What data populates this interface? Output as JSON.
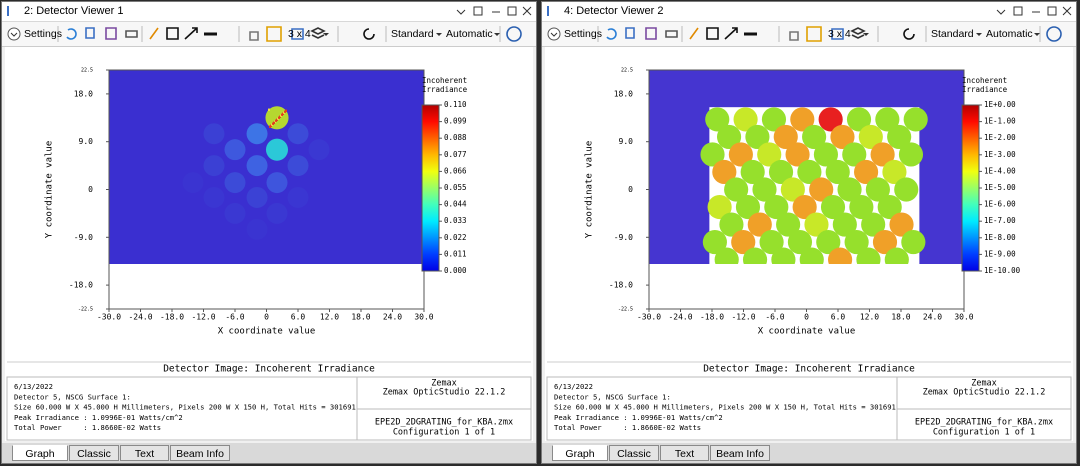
{
  "windows": [
    {
      "title": "2: Detector Viewer 1",
      "toolbar": {
        "settings": "Settings",
        "layout": "3 x 4",
        "style": "Standard",
        "scale": "Automatic"
      },
      "plot": {
        "x_label": "X coordinate value",
        "y_label": "Y coordinate value",
        "x_ticks": [
          "-30.0",
          "-24.0",
          "-18.0",
          "-12.0",
          "-6.0",
          "0",
          "6.0",
          "12.0",
          "18.0",
          "24.0",
          "30.0"
        ],
        "y_ticks": [
          "22.5",
          "18.0",
          "9.0",
          "0",
          "-9.0",
          "-18.0",
          "-22.5"
        ],
        "colorbar": {
          "title": [
            "Incoherent",
            "Irradiance"
          ],
          "labels": [
            "0.110",
            "0.099",
            "0.088",
            "0.077",
            "0.066",
            "0.055",
            "0.044",
            "0.033",
            "0.022",
            "0.011",
            "0.000"
          ]
        },
        "title": "Detector Image: Incoherent Irradiance"
      },
      "info": {
        "lines": [
          "6/13/2022",
          "Detector 5, NSCG Surface 1:",
          "Size 60.000 W X 45.000 H Millimeters, Pixels 200 W X 150 H, Total Hits = 301691",
          "Peak Irradiance : 1.0996E-01 Watts/cm^2",
          "Total Power     : 1.8660E-02 Watts"
        ],
        "vendor": "Zemax",
        "product": "Zemax OpticStudio 22.1.2",
        "file": "EPE2D_2DGRATING_for_KBA.zmx",
        "configuration": "Configuration 1 of 1"
      },
      "tabs": [
        "Graph",
        "Classic",
        "Text",
        "Beam Info"
      ]
    },
    {
      "title": "4: Detector Viewer 2",
      "toolbar": {
        "settings": "Settings",
        "layout": "3 x 4",
        "style": "Standard",
        "scale": "Automatic"
      },
      "plot": {
        "x_label": "X coordinate value",
        "y_label": "Y coordinate value",
        "x_ticks": [
          "-30.0",
          "-24.0",
          "-18.0",
          "-12.0",
          "-6.0",
          "0",
          "6.0",
          "12.0",
          "18.0",
          "24.0",
          "30.0"
        ],
        "y_ticks": [
          "22.5",
          "18.0",
          "9.0",
          "0",
          "-9.0",
          "-18.0",
          "-22.5"
        ],
        "colorbar": {
          "title": [
            "Incoherent",
            "Irradiance"
          ],
          "labels": [
            "1E+0.00",
            "1E-1.00",
            "1E-2.00",
            "1E-3.00",
            "1E-4.00",
            "1E-5.00",
            "1E-6.00",
            "1E-7.00",
            "1E-8.00",
            "1E-9.00",
            "1E-10.00"
          ]
        },
        "title": "Detector Image: Incoherent Irradiance"
      },
      "info": {
        "lines": [
          "6/13/2022",
          "Detector 5, NSCG Surface 1:",
          "Size 60.000 W X 45.000 H Millimeters, Pixels 200 W X 150 H, Total Hits = 301691",
          "Peak Irradiance : 1.0996E-01 Watts/cm^2",
          "Total Power     : 1.8660E-02 Watts"
        ],
        "vendor": "Zemax",
        "product": "Zemax OpticStudio 22.1.2",
        "file": "EPE2D_2DGRATING_for_KBA.zmx",
        "configuration": "Configuration 1 of 1"
      },
      "tabs": [
        "Graph",
        "Classic",
        "Text",
        "Beam Info"
      ]
    }
  ]
}
